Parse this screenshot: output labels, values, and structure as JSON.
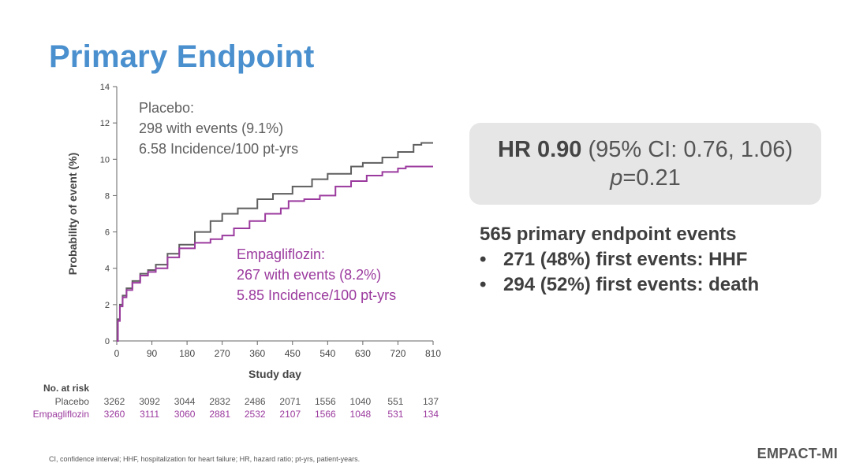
{
  "slide": {
    "title": "Primary Endpoint",
    "footnote": "CI, confidence interval; HHF, hospitalization for heart failure; HR, hazard ratio; pt-yrs, patient-years.",
    "brand": "EMPACT-MI"
  },
  "hr_box": {
    "hr_label": "HR 0.90",
    "ci_text": " (95% CI: 0.76, 1.06)",
    "p_label": "p",
    "p_value": "=0.21"
  },
  "events": {
    "headline": "565 primary endpoint events",
    "items": [
      "271 (48%) first events: HHF",
      "294 (52%) first events: death"
    ]
  },
  "chart_data": {
    "type": "line",
    "step": true,
    "xlabel": "Study day",
    "ylabel": "Probability of event (%)",
    "xlim": [
      0,
      810
    ],
    "ylim": [
      0,
      14
    ],
    "x_ticks": [
      0,
      90,
      180,
      270,
      360,
      450,
      540,
      630,
      720,
      810
    ],
    "y_ticks": [
      0,
      2,
      4,
      6,
      8,
      10,
      12,
      14
    ],
    "series": [
      {
        "name": "Placebo",
        "color": "#5f5f5f",
        "annotation": [
          "Placebo:",
          "298 with events (9.1%)",
          "6.58 Incidence/100 pt-yrs"
        ],
        "points": [
          [
            0,
            0
          ],
          [
            3,
            1.2
          ],
          [
            8,
            2.0
          ],
          [
            15,
            2.5
          ],
          [
            25,
            2.9
          ],
          [
            40,
            3.3
          ],
          [
            60,
            3.7
          ],
          [
            80,
            3.9
          ],
          [
            100,
            4.2
          ],
          [
            130,
            4.8
          ],
          [
            160,
            5.3
          ],
          [
            200,
            6.0
          ],
          [
            240,
            6.6
          ],
          [
            270,
            7.0
          ],
          [
            310,
            7.3
          ],
          [
            360,
            7.8
          ],
          [
            400,
            8.1
          ],
          [
            450,
            8.5
          ],
          [
            500,
            8.9
          ],
          [
            540,
            9.2
          ],
          [
            600,
            9.6
          ],
          [
            630,
            9.8
          ],
          [
            680,
            10.1
          ],
          [
            720,
            10.4
          ],
          [
            760,
            10.8
          ],
          [
            780,
            10.9
          ],
          [
            810,
            10.9
          ]
        ]
      },
      {
        "name": "Empagliflozin",
        "color": "#9b3a9e",
        "annotation": [
          "Empagliflozin:",
          "267 with events (8.2%)",
          "5.85 Incidence/100 pt-yrs"
        ],
        "points": [
          [
            0,
            0
          ],
          [
            3,
            1.1
          ],
          [
            8,
            1.9
          ],
          [
            15,
            2.4
          ],
          [
            25,
            2.8
          ],
          [
            40,
            3.2
          ],
          [
            60,
            3.6
          ],
          [
            80,
            3.8
          ],
          [
            100,
            4.0
          ],
          [
            130,
            4.6
          ],
          [
            160,
            5.1
          ],
          [
            200,
            5.4
          ],
          [
            240,
            5.6
          ],
          [
            270,
            5.8
          ],
          [
            300,
            6.2
          ],
          [
            340,
            6.6
          ],
          [
            380,
            7.0
          ],
          [
            420,
            7.3
          ],
          [
            440,
            7.7
          ],
          [
            480,
            7.8
          ],
          [
            520,
            8.0
          ],
          [
            560,
            8.5
          ],
          [
            600,
            8.8
          ],
          [
            640,
            9.1
          ],
          [
            680,
            9.3
          ],
          [
            720,
            9.5
          ],
          [
            740,
            9.6
          ],
          [
            810,
            9.6
          ]
        ]
      }
    ],
    "at_risk": {
      "header": "No. at risk",
      "rows": [
        {
          "label": "Placebo",
          "color": "#555555",
          "values": [
            3262,
            3092,
            3044,
            2832,
            2486,
            2071,
            1556,
            1040,
            551,
            137
          ]
        },
        {
          "label": "Empagliflozin",
          "color": "#9b3a9e",
          "values": [
            3260,
            3111,
            3060,
            2881,
            2532,
            2107,
            1566,
            1048,
            531,
            134
          ]
        }
      ]
    }
  }
}
